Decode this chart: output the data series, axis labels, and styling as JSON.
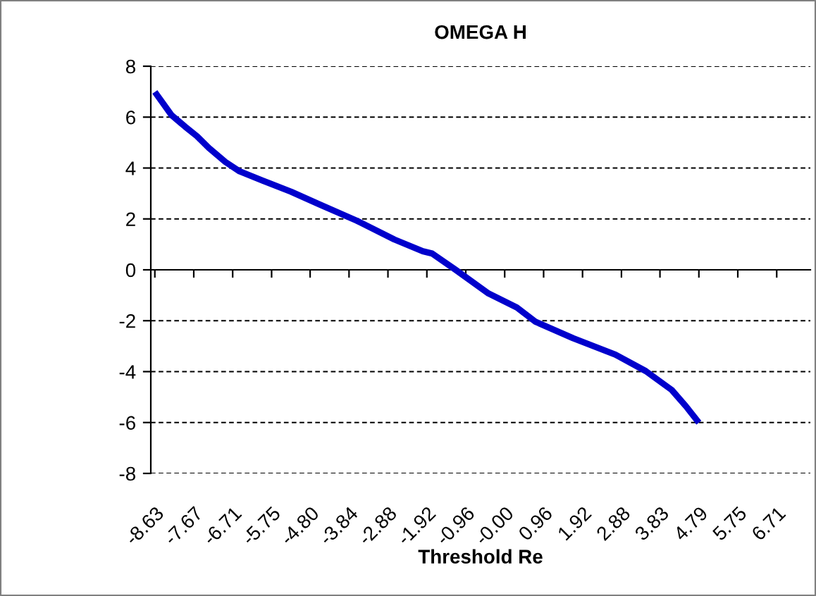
{
  "chart_data": {
    "type": "line",
    "title": "OMEGA H",
    "xlabel": "Threshold Re",
    "series": [
      {
        "color": "#0000cc",
        "x": [
          -8.63,
          -8.22,
          -7.88,
          -7.59,
          -7.3,
          -6.89,
          -6.54,
          -5.96,
          -5.27,
          -4.57,
          -3.65,
          -2.72,
          -2.02,
          -1.79,
          -1.21,
          -0.4,
          0.3,
          0.76,
          1.69,
          2.73,
          3.48,
          4.12,
          4.47,
          4.79
        ],
        "values": [
          6.99,
          6.08,
          5.62,
          5.25,
          4.79,
          4.24,
          3.87,
          3.5,
          3.07,
          2.57,
          1.93,
          1.19,
          0.73,
          0.64,
          0.0,
          -0.93,
          -1.48,
          -2.04,
          -2.69,
          -3.33,
          -3.98,
          -4.72,
          -5.36,
          -6.01
        ]
      }
    ],
    "xlim": [
      -8.73,
      7.54
    ],
    "xticks": [
      -8.63,
      -7.67,
      -6.71,
      -5.75,
      {
        "value": -4.8,
        "label": "-4.80"
      },
      -3.84,
      -2.88,
      -1.92,
      -0.96,
      {
        "value": 0,
        "label": "-0.00"
      },
      0.96,
      1.92,
      2.88,
      3.83,
      4.79,
      5.75,
      6.71
    ],
    "ylim": [
      -8,
      8
    ],
    "yticks": [
      -8,
      -6,
      -4,
      -2,
      0,
      2,
      4,
      6,
      8
    ],
    "grid": "y",
    "legend": false,
    "marker": "none",
    "line_style": "solid"
  }
}
